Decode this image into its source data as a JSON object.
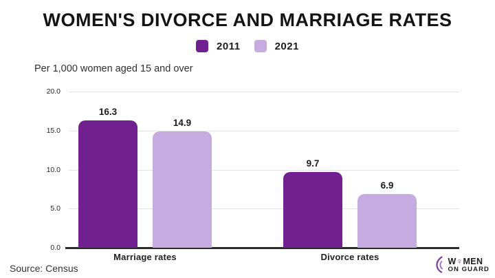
{
  "header": {
    "title": "WOMEN'S DIVORCE AND MARRIAGE RATES"
  },
  "subtitle": "Per 1,000 women aged 15 and over",
  "source": "Source: Census",
  "legend": [
    {
      "label": "2011",
      "color": "#71218f"
    },
    {
      "label": "2021",
      "color": "#c5abdf"
    }
  ],
  "colors": {
    "primary_purple": "#71218f",
    "light_purple": "#c5abdf",
    "gridline": "#e3e3e3",
    "axis": "#2b2b2b",
    "logo_accent": "#7d3b9e"
  },
  "chart_data": {
    "type": "bar",
    "title": "WOMEN'S DIVORCE AND MARRIAGE RATES",
    "subtitle": "Per 1,000 women aged 15 and over",
    "categories": [
      "Marriage rates",
      "Divorce rates"
    ],
    "series": [
      {
        "name": "2011",
        "color": "#71218f",
        "values": [
          16.3,
          9.7
        ]
      },
      {
        "name": "2021",
        "color": "#c5abdf",
        "values": [
          14.9,
          6.9
        ]
      }
    ],
    "value_label_format": "one-decimal",
    "xlabel": "",
    "ylabel": "",
    "ylim": [
      0,
      20
    ],
    "yticks": [
      0,
      5,
      10,
      15,
      20
    ],
    "ytick_labels": [
      "0.0",
      "5.0",
      "10.0",
      "15.0",
      "20.0"
    ],
    "grid": true,
    "legend_position": "top-center"
  },
  "logo": {
    "icon": "woman-guard-icon",
    "line1_pre": "W",
    "line1_symbol": "♀",
    "line1_post": "MEN",
    "line2": "ON GUARD"
  }
}
